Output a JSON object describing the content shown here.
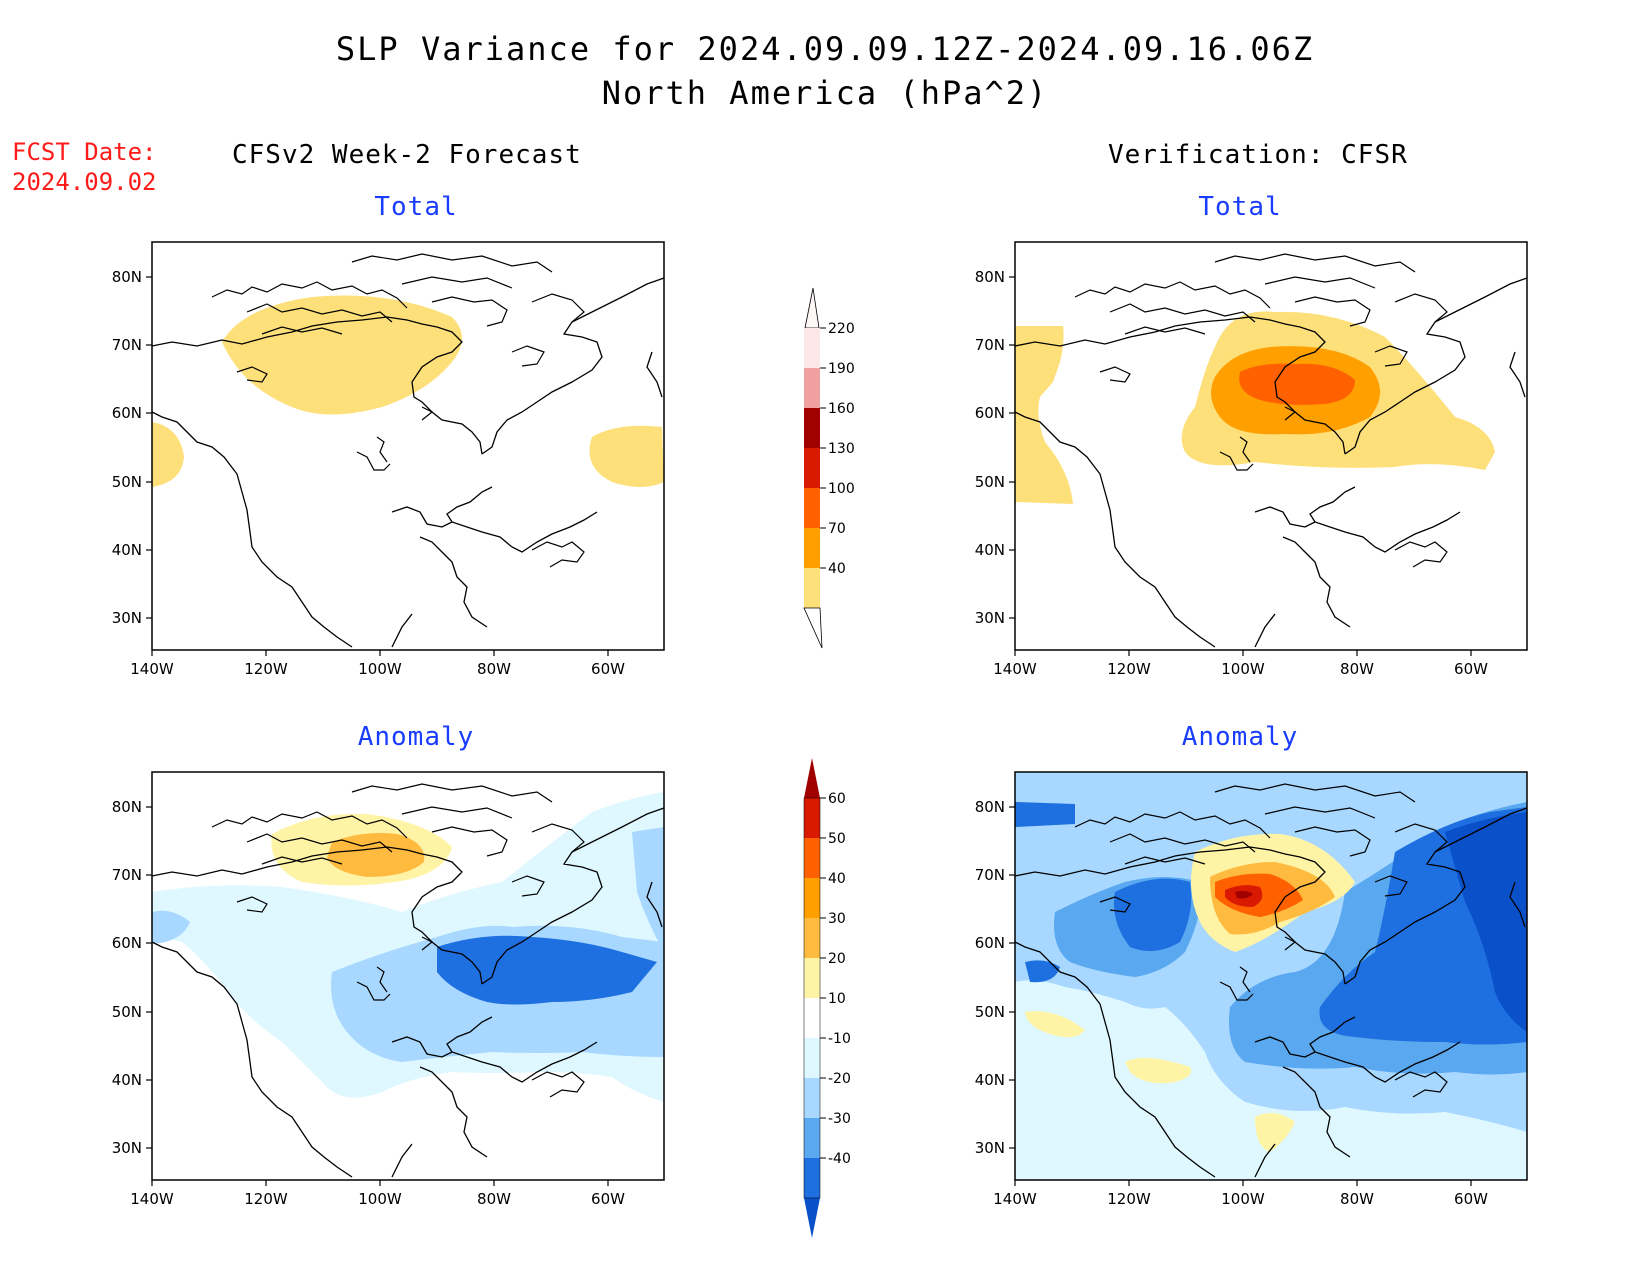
{
  "title_line1": "SLP Variance for 2024.09.09.12Z-2024.09.16.06Z",
  "title_line2": "North America (hPa^2)",
  "fcst_label": "FCST Date:",
  "fcst_date": "2024.09.02",
  "left_column_title": "CFSv2 Week-2 Forecast",
  "right_column_title": "Verification: CFSR",
  "total_label": "Total",
  "anomaly_label": "Anomaly",
  "lat_ticks": [
    "80N",
    "70N",
    "60N",
    "50N",
    "40N",
    "30N"
  ],
  "lon_ticks": [
    "140W",
    "120W",
    "100W",
    "80W",
    "60W"
  ],
  "total_colorbar": {
    "labels": [
      "220",
      "190",
      "160",
      "130",
      "100",
      "70",
      "40"
    ],
    "colors": [
      "#fde6e6",
      "#f0a0a0",
      "#a00000",
      "#d91a00",
      "#ff6000",
      "#ff9f00",
      "#fde07a"
    ]
  },
  "anomaly_colorbar": {
    "labels": [
      "60",
      "50",
      "40",
      "30",
      "20",
      "10",
      "-10",
      "-20",
      "-30",
      "-40"
    ],
    "colors": [
      "#a00000",
      "#d91a00",
      "#ff6000",
      "#ff9f00",
      "#ffbb40",
      "#fff4a6",
      "#ffffff",
      "#dff8ff",
      "#a8d8ff",
      "#5aa8f0",
      "#1e6fe0",
      "#0a50c8"
    ]
  },
  "colors": {
    "title_text": "#000000",
    "fcst_text": "#ff1a1a",
    "subtitle_text": "#1a3cff"
  }
}
